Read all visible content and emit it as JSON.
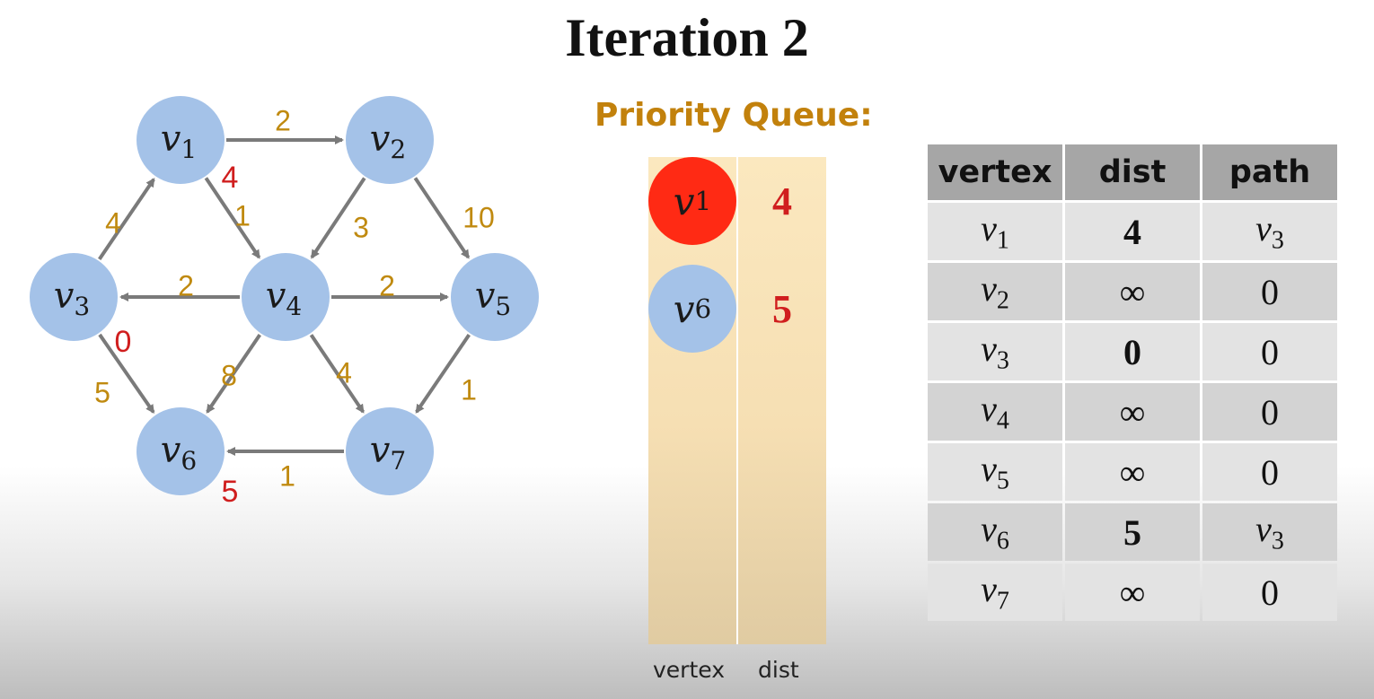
{
  "title": "Iteration 2",
  "colors": {
    "node": "#a4c2e8",
    "edge": "#7a7a7a",
    "weight": "#c08a10",
    "distance": "#d01e1e",
    "highlight_node": "#ff2a14",
    "path": "#7b2a9e",
    "queue_bg": "#f6dfb3"
  },
  "graph": {
    "nodes": [
      {
        "id": "v1",
        "base": "v",
        "sub": "1",
        "dist": "4"
      },
      {
        "id": "v2",
        "base": "v",
        "sub": "2",
        "dist": ""
      },
      {
        "id": "v3",
        "base": "v",
        "sub": "3",
        "dist": "0"
      },
      {
        "id": "v4",
        "base": "v",
        "sub": "4",
        "dist": ""
      },
      {
        "id": "v5",
        "base": "v",
        "sub": "5",
        "dist": ""
      },
      {
        "id": "v6",
        "base": "v",
        "sub": "6",
        "dist": "5"
      },
      {
        "id": "v7",
        "base": "v",
        "sub": "7",
        "dist": ""
      }
    ],
    "edges": [
      {
        "from": "v1",
        "to": "v2",
        "weight": "2"
      },
      {
        "from": "v3",
        "to": "v1",
        "weight": "4"
      },
      {
        "from": "v1",
        "to": "v4",
        "weight": "1"
      },
      {
        "from": "v2",
        "to": "v4",
        "weight": "3"
      },
      {
        "from": "v2",
        "to": "v5",
        "weight": "10"
      },
      {
        "from": "v4",
        "to": "v3",
        "weight": "2"
      },
      {
        "from": "v4",
        "to": "v5",
        "weight": "2"
      },
      {
        "from": "v3",
        "to": "v6",
        "weight": "5"
      },
      {
        "from": "v4",
        "to": "v6",
        "weight": "8"
      },
      {
        "from": "v4",
        "to": "v7",
        "weight": "4"
      },
      {
        "from": "v5",
        "to": "v7",
        "weight": "1"
      },
      {
        "from": "v7",
        "to": "v6",
        "weight": "1"
      }
    ]
  },
  "priority_queue": {
    "title": "Priority Queue:",
    "entries": [
      {
        "base": "v",
        "sub": "1",
        "dist": "4",
        "highlighted": true
      },
      {
        "base": "v",
        "sub": "6",
        "dist": "5",
        "highlighted": false
      }
    ],
    "footer": {
      "vertex": "vertex",
      "dist": "dist"
    }
  },
  "table": {
    "headers": {
      "vertex": "vertex",
      "dist": "dist",
      "path": "path"
    },
    "rows": [
      {
        "vertex_base": "v",
        "vertex_sub": "1",
        "dist": "4",
        "path_base": "v",
        "path_sub": "3",
        "dist_red": true,
        "path_var": true,
        "vertex_purple": false
      },
      {
        "vertex_base": "v",
        "vertex_sub": "2",
        "dist": "∞",
        "path_base": "0",
        "path_sub": "",
        "dist_red": false,
        "path_var": false,
        "vertex_purple": false
      },
      {
        "vertex_base": "v",
        "vertex_sub": "3",
        "dist": "0",
        "path_base": "0",
        "path_sub": "",
        "dist_red": true,
        "path_var": false,
        "vertex_purple": true
      },
      {
        "vertex_base": "v",
        "vertex_sub": "4",
        "dist": "∞",
        "path_base": "0",
        "path_sub": "",
        "dist_red": false,
        "path_var": false,
        "vertex_purple": false
      },
      {
        "vertex_base": "v",
        "vertex_sub": "5",
        "dist": "∞",
        "path_base": "0",
        "path_sub": "",
        "dist_red": false,
        "path_var": false,
        "vertex_purple": false
      },
      {
        "vertex_base": "v",
        "vertex_sub": "6",
        "dist": "5",
        "path_base": "v",
        "path_sub": "3",
        "dist_red": true,
        "path_var": true,
        "vertex_purple": false
      },
      {
        "vertex_base": "v",
        "vertex_sub": "7",
        "dist": "∞",
        "path_base": "0",
        "path_sub": "",
        "dist_red": false,
        "path_var": false,
        "vertex_purple": false
      }
    ]
  }
}
